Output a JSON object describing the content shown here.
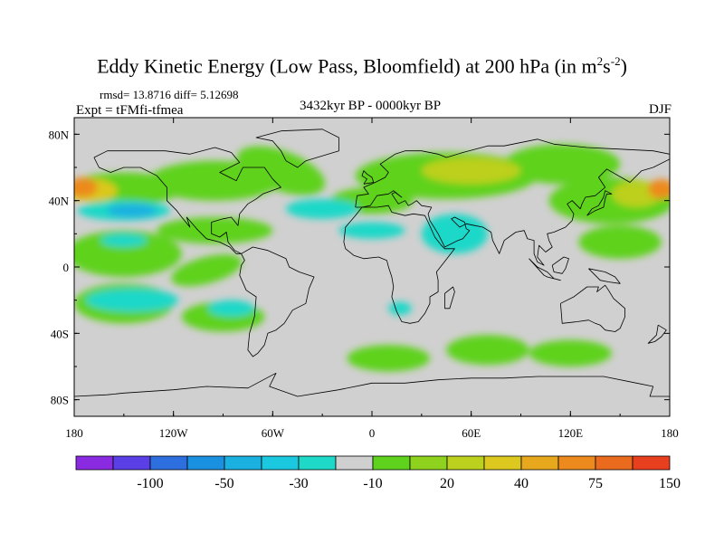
{
  "chart_data": {
    "type": "heatmap",
    "title_main": "Eddy Kinetic Energy (Low Pass, Bloomfield) at 200 hPa (in m",
    "title_units_exp1": "2",
    "title_units_mid": "s",
    "title_units_exp2": "-2",
    "title_units_close": ")",
    "stats": "rmsd= 13.8716 diff= 5.12698",
    "experiment": "Expt = tFMfi-tfmea",
    "period": "3432kyr BP - 0000kyr BP",
    "season": "DJF",
    "x_range": [
      -180,
      180
    ],
    "y_range": [
      -90,
      90
    ],
    "x_ticks": [
      {
        "value": -180,
        "label": "180"
      },
      {
        "value": -120,
        "label": "120W"
      },
      {
        "value": -60,
        "label": "60W"
      },
      {
        "value": 0,
        "label": "0"
      },
      {
        "value": 60,
        "label": "60E"
      },
      {
        "value": 120,
        "label": "120E"
      },
      {
        "value": 180,
        "label": "180"
      }
    ],
    "y_ticks": [
      {
        "value": 80,
        "label": "80N"
      },
      {
        "value": 40,
        "label": "40N"
      },
      {
        "value": 0,
        "label": "0"
      },
      {
        "value": -40,
        "label": "40S"
      },
      {
        "value": -80,
        "label": "80S"
      }
    ],
    "colorbar": {
      "colors": [
        "#8a2be2",
        "#5a3ee6",
        "#2e6fe0",
        "#1a90e0",
        "#1ab0e0",
        "#1ac8e0",
        "#1ed8c8",
        "#d0d0d0",
        "#5fd21e",
        "#8ed21e",
        "#bcd01e",
        "#dcc81e",
        "#e8a81e",
        "#ec8a1e",
        "#ea6a1e",
        "#e8401e"
      ],
      "labels": [
        {
          "after_box": 2,
          "text": "-100"
        },
        {
          "after_box": 4,
          "text": "-50"
        },
        {
          "after_box": 6,
          "text": "-30"
        },
        {
          "after_box": 8,
          "text": "-10"
        },
        {
          "after_box": 10,
          "text": "20"
        },
        {
          "after_box": 12,
          "text": "40"
        },
        {
          "after_box": 14,
          "text": "75"
        },
        {
          "after_box": 16,
          "text": "150"
        }
      ]
    },
    "anomaly_regions": [
      {
        "name": "north-pacific-positive",
        "level": "20-30",
        "center_lon": -150,
        "center_lat": 47,
        "half_width_lon": 35,
        "half_height_lat": 10,
        "rotation_deg": 0
      },
      {
        "name": "dateline-north-strong",
        "level": "75-100",
        "center_lon": -175,
        "center_lat": 48,
        "half_width_lon": 9,
        "half_height_lat": 6,
        "rotation_deg": 0
      },
      {
        "name": "north-pacific-core",
        "level": "40-50",
        "center_lon": -170,
        "center_lat": 46,
        "half_width_lon": 16,
        "half_height_lat": 7,
        "rotation_deg": 0
      },
      {
        "name": "north-america-band",
        "level": "20-30",
        "center_lon": -95,
        "center_lat": 52,
        "half_width_lon": 40,
        "half_height_lat": 12,
        "rotation_deg": 0
      },
      {
        "name": "north-atlantic-band",
        "level": "20-30",
        "center_lon": -55,
        "center_lat": 58,
        "half_width_lon": 28,
        "half_height_lat": 12,
        "rotation_deg": 20
      },
      {
        "name": "atlantic-tropic-band",
        "level": "20-30",
        "center_lon": -95,
        "center_lat": 22,
        "half_width_lon": 35,
        "half_height_lat": 8,
        "rotation_deg": 0
      },
      {
        "name": "pacific-tropics",
        "level": "20-30",
        "center_lon": -150,
        "center_lat": 8,
        "half_width_lon": 35,
        "half_height_lat": 14,
        "rotation_deg": 0
      },
      {
        "name": "caribbean-band",
        "level": "20-30",
        "center_lon": -100,
        "center_lat": -2,
        "half_width_lon": 22,
        "half_height_lat": 8,
        "rotation_deg": -15
      },
      {
        "name": "eurasia-belt",
        "level": "20-30",
        "center_lon": 45,
        "center_lat": 55,
        "half_width_lon": 55,
        "half_height_lat": 14,
        "rotation_deg": 0
      },
      {
        "name": "siberia-belt",
        "level": "20-30",
        "center_lon": 115,
        "center_lat": 62,
        "half_width_lon": 35,
        "half_height_lat": 12,
        "rotation_deg": 0
      },
      {
        "name": "east-asia-belt",
        "level": "20-30",
        "center_lon": 145,
        "center_lat": 40,
        "half_width_lon": 38,
        "half_height_lat": 14,
        "rotation_deg": 0
      },
      {
        "name": "mediterranean-belt",
        "level": "20-30",
        "center_lon": 0,
        "center_lat": 40,
        "half_width_lon": 25,
        "half_height_lat": 8,
        "rotation_deg": 0
      },
      {
        "name": "eurasia-core",
        "level": "30-40",
        "center_lon": 60,
        "center_lat": 58,
        "half_width_lon": 30,
        "half_height_lat": 8,
        "rotation_deg": 0
      },
      {
        "name": "east-asia-core",
        "level": "30-40",
        "center_lon": 160,
        "center_lat": 44,
        "half_width_lon": 15,
        "half_height_lat": 8,
        "rotation_deg": 0
      },
      {
        "name": "dateline-east-strong",
        "level": "75-100",
        "center_lon": 175,
        "center_lat": 47,
        "half_width_lon": 8,
        "half_height_lat": 6,
        "rotation_deg": 0
      },
      {
        "name": "eastern-pacific-tropics",
        "level": "20-30",
        "center_lon": 150,
        "center_lat": 15,
        "half_width_lon": 25,
        "half_height_lat": 10,
        "rotation_deg": 0
      },
      {
        "name": "south-pacific-positive",
        "level": "20-30",
        "center_lon": -150,
        "center_lat": -22,
        "half_width_lon": 30,
        "half_height_lat": 12,
        "rotation_deg": 0
      },
      {
        "name": "south-pacific-east",
        "level": "20-30",
        "center_lon": -90,
        "center_lat": -30,
        "half_width_lon": 25,
        "half_height_lat": 9,
        "rotation_deg": 0
      },
      {
        "name": "south-atlantic-positive",
        "level": "20-30",
        "center_lon": 10,
        "center_lat": -55,
        "half_width_lon": 25,
        "half_height_lat": 8,
        "rotation_deg": 0
      },
      {
        "name": "southern-indian-positive",
        "level": "20-30",
        "center_lon": 70,
        "center_lat": -50,
        "half_width_lon": 25,
        "half_height_lat": 9,
        "rotation_deg": 0
      },
      {
        "name": "southern-ocean-east",
        "level": "20-30",
        "center_lon": 120,
        "center_lat": -52,
        "half_width_lon": 25,
        "half_height_lat": 8,
        "rotation_deg": 0
      },
      {
        "name": "north-pacific-negative",
        "level": "-30--20",
        "center_lon": -150,
        "center_lat": 34,
        "half_width_lon": 28,
        "half_height_lat": 6,
        "rotation_deg": 0
      },
      {
        "name": "north-pacific-negative-core",
        "level": "-50--30",
        "center_lon": -145,
        "center_lat": 34,
        "half_width_lon": 15,
        "half_height_lat": 4,
        "rotation_deg": 0
      },
      {
        "name": "north-atlantic-negative",
        "level": "-30--20",
        "center_lon": -30,
        "center_lat": 35,
        "half_width_lon": 22,
        "half_height_lat": 6,
        "rotation_deg": 0
      },
      {
        "name": "north-africa-negative",
        "level": "-30--20",
        "center_lon": 0,
        "center_lat": 22,
        "half_width_lon": 20,
        "half_height_lat": 5,
        "rotation_deg": 0
      },
      {
        "name": "arabia-negative",
        "level": "-30--20",
        "center_lon": 50,
        "center_lat": 20,
        "half_width_lon": 20,
        "half_height_lat": 12,
        "rotation_deg": 0
      },
      {
        "name": "subtropic-pacific-negative",
        "level": "-30--20",
        "center_lon": -150,
        "center_lat": 16,
        "half_width_lon": 14,
        "half_height_lat": 4,
        "rotation_deg": 0
      },
      {
        "name": "south-pacific-negative",
        "level": "-30--20",
        "center_lon": -145,
        "center_lat": -20,
        "half_width_lon": 28,
        "half_height_lat": 7,
        "rotation_deg": 0
      },
      {
        "name": "south-america-negative",
        "level": "-30--20",
        "center_lon": -85,
        "center_lat": -25,
        "half_width_lon": 14,
        "half_height_lat": 5,
        "rotation_deg": 0
      },
      {
        "name": "south-africa-negative",
        "level": "-30--20",
        "center_lon": 17,
        "center_lat": -25,
        "half_width_lon": 7,
        "half_height_lat": 4,
        "rotation_deg": 0
      }
    ]
  }
}
